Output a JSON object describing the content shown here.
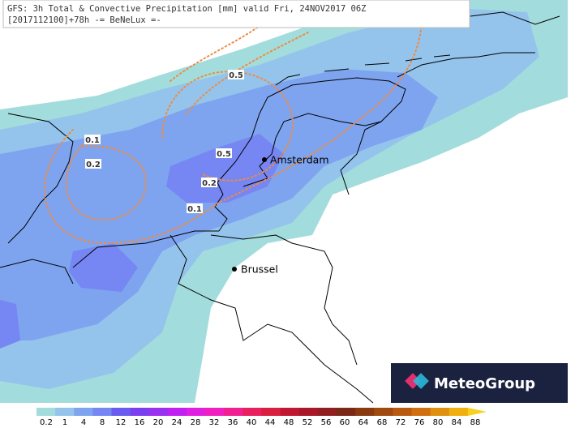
{
  "header": {
    "line1": "GFS: 3h Total & Convective Precipitation [mm] valid Fri, 24NOV2017 06Z",
    "line2": "[2017112100]+78h -= BeNeLux =-"
  },
  "contour_labels": [
    "0.5",
    "0.1",
    "0.2",
    "0.5",
    "0.2",
    "0.1"
  ],
  "cities": [
    "Amsterdam",
    "Brussel"
  ],
  "logo": "MeteoGroup",
  "colorbar": {
    "labels": [
      "0.2",
      "1",
      "4",
      "8",
      "12",
      "16",
      "20",
      "24",
      "28",
      "32",
      "36",
      "40",
      "44",
      "48",
      "52",
      "56",
      "60",
      "64",
      "68",
      "72",
      "76",
      "80",
      "84",
      "88"
    ],
    "colors": [
      "#a3dcdc",
      "#94c4ec",
      "#7ea4f0",
      "#7686f2",
      "#6a5cf0",
      "#7a40f0",
      "#9a30f0",
      "#c020f0",
      "#e020e0",
      "#f020c0",
      "#f02090",
      "#e82060",
      "#d82040",
      "#c01830",
      "#a81828",
      "#902020",
      "#7a2818",
      "#8a3a10",
      "#a04a10",
      "#b85a10",
      "#d07010",
      "#e09010",
      "#f0b010",
      "#f8d020"
    ]
  }
}
